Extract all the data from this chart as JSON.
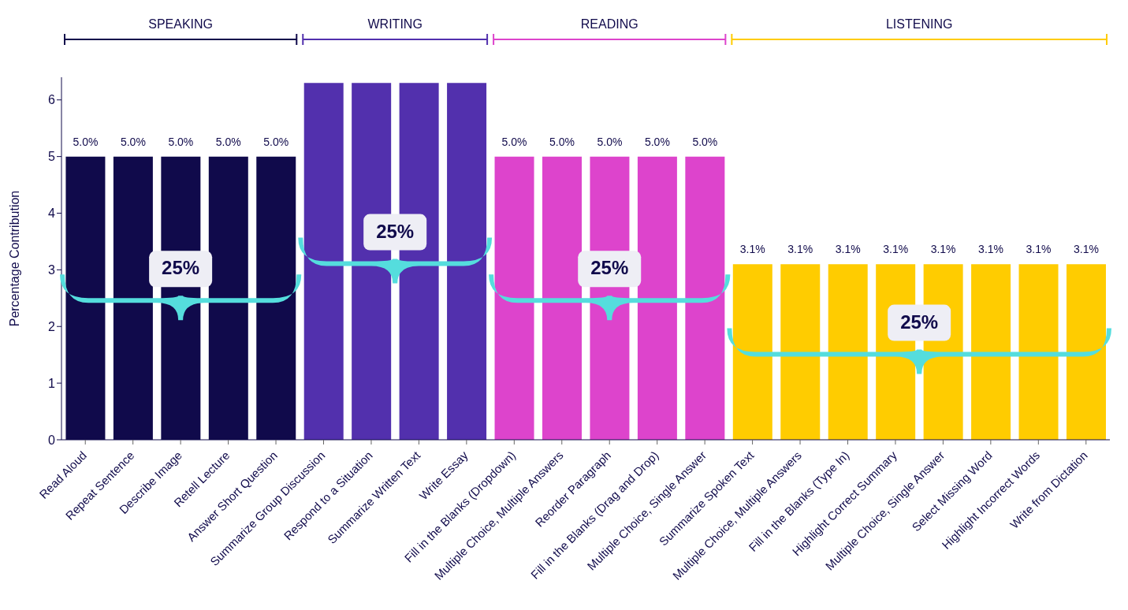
{
  "chart_data": {
    "type": "bar",
    "ylabel": "Percentage Contribution",
    "categories": [
      "Read Aloud",
      "Repeat Sentence",
      "Describe Image",
      "Retell Lecture",
      "Answer Short Question",
      "Summarize Group Discussion",
      "Respond to a Situation",
      "Summarize Written Text",
      "Write Essay",
      "Fill in the Blanks (Dropdown)",
      "Multiple Choice, Multiple Answers",
      "Reorder Paragraph",
      "Fill in the Blanks (Drag and Drop)",
      "Multiple Choice, Single Answer",
      "Summarize Spoken Text",
      "Multiple Choice, Multiple Answers",
      "Fill in the Blanks (Type In)",
      "Highlight Correct Summary",
      "Multiple Choice, Single Answer",
      "Select Missing Word",
      "Highlight Incorrect Words",
      "Write from Dictation"
    ],
    "values": [
      5,
      5,
      5,
      5,
      5,
      6.3,
      6.3,
      6.3,
      6.3,
      5,
      5,
      5,
      5,
      5,
      3.1,
      3.1,
      3.1,
      3.1,
      3.1,
      3.1,
      3.1,
      3.1
    ],
    "value_labels": [
      "5.0%",
      "5.0%",
      "5.0%",
      "5.0%",
      "5.0%",
      null,
      null,
      null,
      null,
      "5.0%",
      "5.0%",
      "5.0%",
      "5.0%",
      "5.0%",
      "3.1%",
      "3.1%",
      "3.1%",
      "3.1%",
      "3.1%",
      "3.1%",
      "3.1%",
      "3.1%"
    ],
    "colors": [
      "#100a4b",
      "#100a4b",
      "#100a4b",
      "#100a4b",
      "#100a4b",
      "#5230ad",
      "#5230ad",
      "#5230ad",
      "#5230ad",
      "#dd44cc",
      "#dd44cc",
      "#dd44cc",
      "#dd44cc",
      "#dd44cc",
      "#ffcc00",
      "#ffcc00",
      "#ffcc00",
      "#ffcc00",
      "#ffcc00",
      "#ffcc00",
      "#ffcc00",
      "#ffcc00"
    ],
    "ylim": [
      0,
      6.4
    ],
    "yticks": [
      0,
      1,
      2,
      3,
      4,
      5,
      6
    ],
    "annotations": [
      "SPEAKING",
      "WRITING",
      "READING",
      "LISTENING",
      "25%",
      "25%",
      "25%",
      "25%"
    ]
  }
}
